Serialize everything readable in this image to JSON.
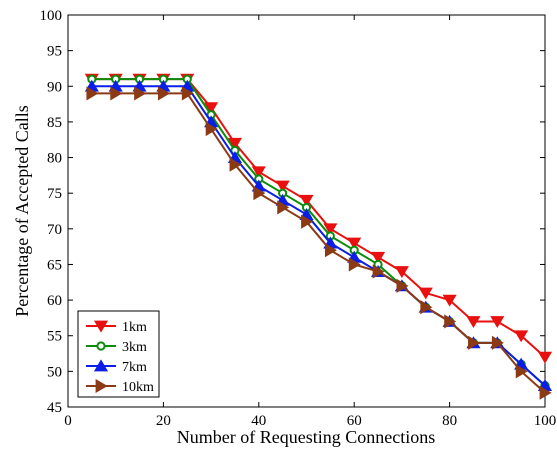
{
  "chart_data": {
    "type": "line",
    "xlabel": "Number of Requesting Connections",
    "ylabel": "Percentage of Accepted Calls",
    "xlim": [
      0,
      100
    ],
    "ylim": [
      45,
      100
    ],
    "xticks": [
      "0",
      "20",
      "40",
      "60",
      "80",
      "100"
    ],
    "yticks": [
      "45",
      "50",
      "55",
      "60",
      "65",
      "70",
      "75",
      "80",
      "85",
      "90",
      "95",
      "100"
    ],
    "legend_position": "bottom-left",
    "grid": false,
    "x": [
      5,
      10,
      15,
      20,
      25,
      30,
      35,
      40,
      45,
      50,
      55,
      60,
      65,
      70,
      75,
      80,
      85,
      90,
      95,
      100
    ],
    "series": [
      {
        "name": "1km",
        "color": "#e8110f",
        "marker": "triangle-down",
        "values": [
          91,
          91,
          91,
          91,
          91,
          87,
          82,
          78,
          76,
          74,
          70,
          68,
          66,
          64,
          61,
          60,
          57,
          57,
          55,
          52
        ]
      },
      {
        "name": "3km",
        "color": "#0b8c0b",
        "marker": "circle",
        "values": [
          91,
          91,
          91,
          91,
          91,
          86,
          81,
          77,
          75,
          73,
          69,
          67,
          65,
          62,
          59,
          57,
          54,
          54,
          51,
          48
        ]
      },
      {
        "name": "7km",
        "color": "#0a1ee8",
        "marker": "triangle-up",
        "values": [
          90,
          90,
          90,
          90,
          90,
          85,
          80,
          76,
          74,
          72,
          68,
          66,
          64,
          62,
          59,
          57,
          54,
          54,
          51,
          48
        ]
      },
      {
        "name": "10km",
        "color": "#8b3a14",
        "marker": "triangle-right",
        "values": [
          89,
          89,
          89,
          89,
          89,
          84,
          79,
          75,
          73,
          71,
          67,
          65,
          64,
          62,
          59,
          57,
          54,
          54,
          50,
          47
        ]
      }
    ]
  }
}
